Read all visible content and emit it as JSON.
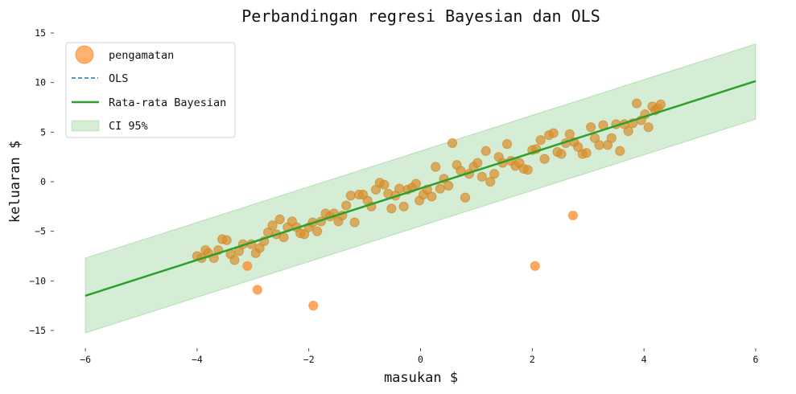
{
  "chart_data": {
    "type": "scatter",
    "title": "Perbandingan regresi Bayesian dan OLS",
    "xlabel": "masukan $",
    "ylabel": "keluaran $",
    "xlim": [
      -6.25,
      6.25
    ],
    "ylim": [
      -16.2,
      15.5
    ],
    "xticks": [
      -6,
      -4,
      -2,
      0,
      2,
      4,
      6
    ],
    "yticks": [
      15,
      10,
      5,
      0,
      -5,
      -10,
      -15
    ],
    "xtick_labels": [
      "−6",
      "−4",
      "−2",
      "0",
      "2",
      "4",
      "6"
    ],
    "ytick_labels": [
      "15",
      "10",
      "5",
      "0",
      "−5",
      "−10",
      "−15"
    ],
    "grid": false,
    "legend_position": "upper left",
    "legend": [
      {
        "label": "pengamatan",
        "kind": "marker"
      },
      {
        "label": "OLS",
        "kind": "dashed-line"
      },
      {
        "label": "Rata-rata Bayesian",
        "kind": "line"
      },
      {
        "label": "CI 95%",
        "kind": "patch"
      }
    ],
    "colors": {
      "points": "#ff7f0e",
      "points_edge": "#e8821f",
      "ols": "#1f77b4",
      "bayes_mean": "#2ca02c",
      "ci_fill": "#2ca02c",
      "ci_alpha": 0.2,
      "point_alpha": 0.6
    },
    "series": [
      {
        "name": "Rata-rata Bayesian",
        "type": "line",
        "x": [
          -6,
          6
        ],
        "y": [
          -11.5,
          10.15
        ]
      },
      {
        "name": "OLS",
        "type": "line",
        "x": [
          -6,
          6
        ],
        "y": [
          -11.5,
          10.15
        ]
      },
      {
        "name": "CI 95%",
        "type": "area",
        "x": [
          -6,
          6
        ],
        "y_lower": [
          -15.25,
          6.3
        ],
        "y_upper": [
          -7.7,
          13.9
        ]
      },
      {
        "name": "pengamatan",
        "type": "scatter",
        "points": [
          [
            -4.0,
            -7.5
          ],
          [
            -3.92,
            -7.7
          ],
          [
            -3.85,
            -6.9
          ],
          [
            -3.8,
            -7.2
          ],
          [
            -3.7,
            -7.7
          ],
          [
            -3.62,
            -6.9
          ],
          [
            -3.55,
            -5.8
          ],
          [
            -3.47,
            -5.9
          ],
          [
            -3.4,
            -7.3
          ],
          [
            -3.33,
            -7.9
          ],
          [
            -3.25,
            -7.0
          ],
          [
            -3.18,
            -6.3
          ],
          [
            -3.1,
            -8.5
          ],
          [
            -3.03,
            -6.3
          ],
          [
            -2.95,
            -7.2
          ],
          [
            -2.88,
            -6.7
          ],
          [
            -2.8,
            -6.0
          ],
          [
            -2.73,
            -5.1
          ],
          [
            -2.65,
            -4.4
          ],
          [
            -2.58,
            -5.3
          ],
          [
            -2.52,
            -3.8
          ],
          [
            -2.45,
            -5.6
          ],
          [
            -2.38,
            -4.6
          ],
          [
            -2.3,
            -4.0
          ],
          [
            -2.22,
            -4.6
          ],
          [
            -2.15,
            -5.2
          ],
          [
            -2.08,
            -5.3
          ],
          [
            -2.0,
            -4.6
          ],
          [
            -1.93,
            -4.1
          ],
          [
            -1.85,
            -5.0
          ],
          [
            -1.78,
            -4.0
          ],
          [
            -1.7,
            -3.2
          ],
          [
            -1.62,
            -3.5
          ],
          [
            -1.55,
            -3.2
          ],
          [
            -1.47,
            -4.0
          ],
          [
            -1.4,
            -3.4
          ],
          [
            -1.33,
            -2.4
          ],
          [
            -1.25,
            -1.4
          ],
          [
            -1.18,
            -4.1
          ],
          [
            -1.1,
            -1.3
          ],
          [
            -1.03,
            -1.3
          ],
          [
            -0.95,
            -1.9
          ],
          [
            -0.88,
            -2.5
          ],
          [
            -0.8,
            -0.8
          ],
          [
            -0.73,
            -0.1
          ],
          [
            -0.65,
            -0.3
          ],
          [
            -0.58,
            -1.2
          ],
          [
            -0.52,
            -2.7
          ],
          [
            -0.45,
            -1.4
          ],
          [
            -0.38,
            -0.7
          ],
          [
            -0.3,
            -2.5
          ],
          [
            -0.23,
            -0.8
          ],
          [
            -0.15,
            -0.6
          ],
          [
            -0.08,
            -0.2
          ],
          [
            -0.02,
            -1.9
          ],
          [
            0.05,
            -1.3
          ],
          [
            0.12,
            -0.8
          ],
          [
            0.2,
            -1.5
          ],
          [
            0.27,
            1.5
          ],
          [
            0.35,
            -0.7
          ],
          [
            0.42,
            0.3
          ],
          [
            0.5,
            -0.4
          ],
          [
            0.57,
            3.9
          ],
          [
            0.65,
            1.7
          ],
          [
            0.72,
            1.1
          ],
          [
            0.8,
            -1.6
          ],
          [
            0.87,
            0.8
          ],
          [
            0.95,
            1.5
          ],
          [
            1.02,
            1.9
          ],
          [
            1.1,
            0.5
          ],
          [
            1.17,
            3.1
          ],
          [
            1.25,
            0.0
          ],
          [
            1.32,
            0.8
          ],
          [
            1.4,
            2.5
          ],
          [
            1.47,
            1.9
          ],
          [
            1.55,
            3.8
          ],
          [
            1.62,
            2.1
          ],
          [
            1.7,
            1.6
          ],
          [
            1.77,
            1.9
          ],
          [
            1.85,
            1.3
          ],
          [
            1.92,
            1.2
          ],
          [
            2.0,
            3.2
          ],
          [
            2.07,
            3.3
          ],
          [
            2.15,
            4.2
          ],
          [
            2.22,
            2.3
          ],
          [
            2.3,
            4.7
          ],
          [
            2.38,
            4.9
          ],
          [
            2.45,
            3.0
          ],
          [
            2.52,
            2.8
          ],
          [
            2.6,
            3.9
          ],
          [
            2.67,
            4.8
          ],
          [
            2.75,
            4.0
          ],
          [
            2.82,
            3.5
          ],
          [
            2.9,
            2.8
          ],
          [
            2.97,
            2.9
          ],
          [
            3.05,
            5.5
          ],
          [
            3.12,
            4.4
          ],
          [
            3.2,
            3.7
          ],
          [
            3.27,
            5.7
          ],
          [
            3.35,
            3.7
          ],
          [
            3.42,
            4.4
          ],
          [
            3.5,
            5.8
          ],
          [
            3.57,
            3.1
          ],
          [
            3.65,
            5.8
          ],
          [
            3.72,
            5.1
          ],
          [
            3.8,
            5.9
          ],
          [
            3.87,
            7.9
          ],
          [
            3.95,
            6.2
          ],
          [
            4.02,
            6.8
          ],
          [
            4.08,
            5.5
          ],
          [
            4.15,
            7.6
          ],
          [
            4.2,
            7.2
          ],
          [
            4.25,
            7.4
          ],
          [
            4.3,
            7.8
          ],
          [
            -2.92,
            -10.9
          ],
          [
            -1.92,
            -12.5
          ],
          [
            2.05,
            -8.5
          ],
          [
            2.73,
            -3.4
          ]
        ]
      }
    ]
  }
}
